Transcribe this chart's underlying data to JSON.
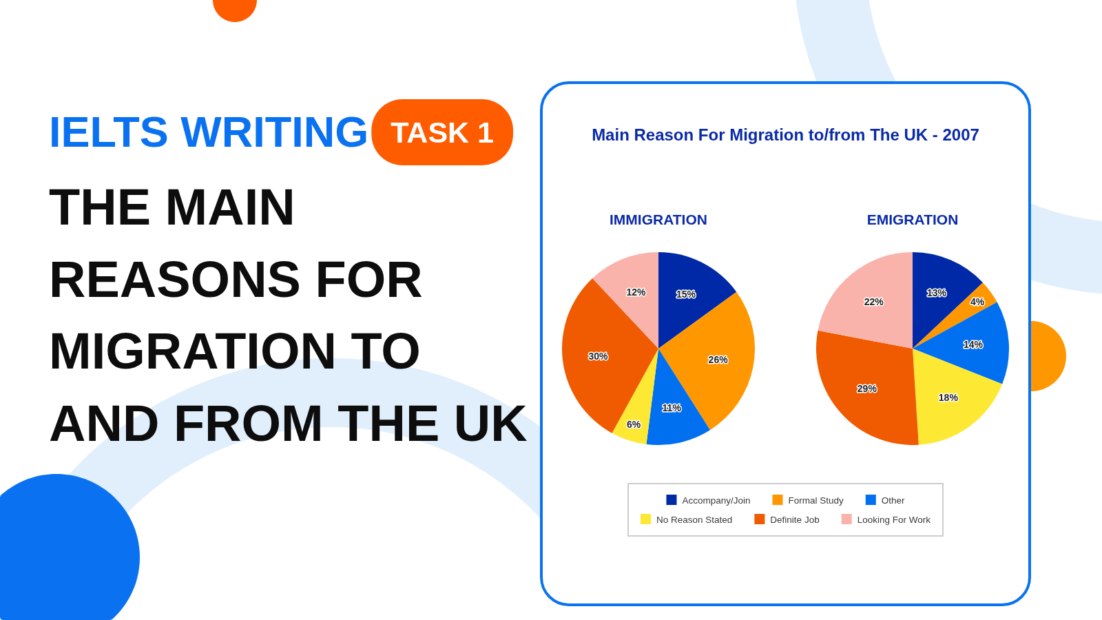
{
  "chart_data": [
    {
      "type": "other",
      "title": "THE MAIN REASONS FOR MIGRATION TO AND FROM THE UK",
      "annotations": [
        "IELTS WRITING",
        "TASK 1"
      ]
    },
    {
      "type": "pie",
      "title": "Main Reason For Migration to/from The UK - 2007",
      "categories": [
        "Accompany/Join",
        "Formal Study",
        "Other",
        "No Reason Stated",
        "Definite Job",
        "Looking For Work"
      ],
      "colors": [
        "#0029a8",
        "#ff9800",
        "#0070f0",
        "#fde834",
        "#f05a00",
        "#fab3aa"
      ],
      "legend": "bottom",
      "series": [
        {
          "name": "IMMIGRATION",
          "values": [
            15,
            26,
            11,
            6,
            30,
            12
          ],
          "value_labels": [
            "15%",
            "26%",
            "11%",
            "6%",
            "30%",
            "12%"
          ]
        },
        {
          "name": "EMIGRATION",
          "values": [
            13,
            4,
            14,
            18,
            29,
            22
          ],
          "value_labels": [
            "13%",
            "4%",
            "14%",
            "18%",
            "29%",
            "22%"
          ]
        }
      ]
    }
  ]
}
